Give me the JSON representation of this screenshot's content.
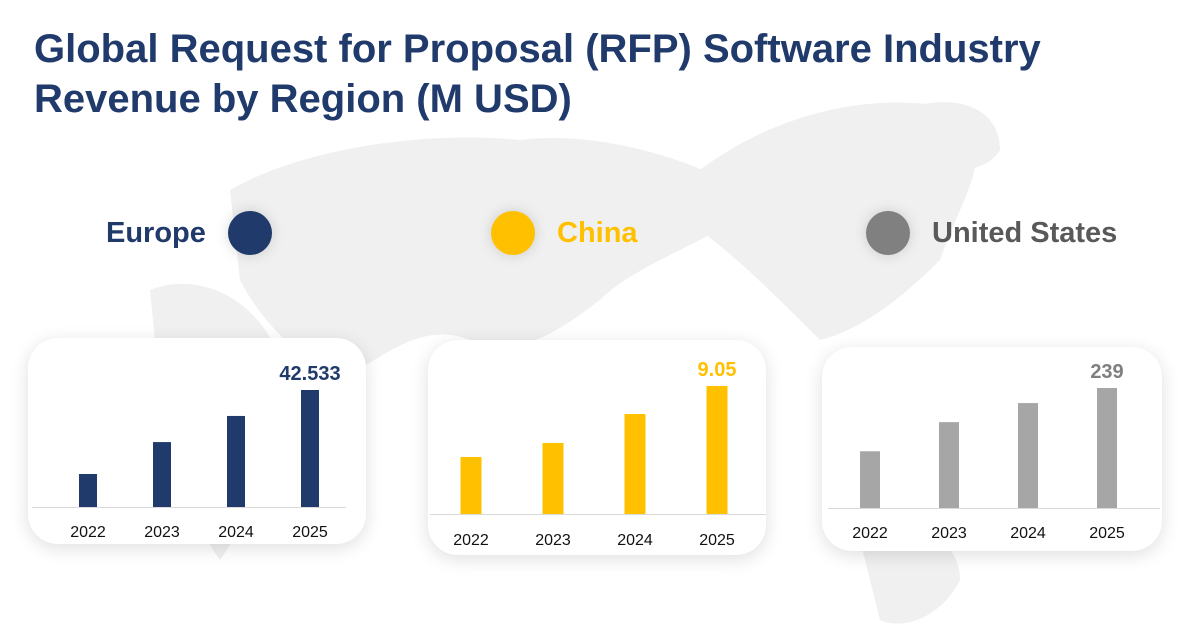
{
  "title": "Global Request for Proposal (RFP) Software Industry Revenue by Region (M USD)",
  "colors": {
    "Europe": "#1f3a6b",
    "China": "#ffc000",
    "United States": "#a6a6a6",
    "title": "#1f3a6b"
  },
  "legend": [
    {
      "label": "Europe",
      "color": "#1f3a6b",
      "text_color": "#1f3a6b"
    },
    {
      "label": "China",
      "color": "#ffc000",
      "text_color": "#ffc000"
    },
    {
      "label": "United States",
      "color": "#808080",
      "text_color": "#595959"
    }
  ],
  "chart_data": [
    {
      "type": "bar",
      "series_name": "Europe",
      "categories": [
        "2022",
        "2023",
        "2024",
        "2025"
      ],
      "values": [
        12.0,
        23.6,
        33.1,
        42.533
      ],
      "data_label": "42.533",
      "color": "#1f3a6b",
      "grid": false
    },
    {
      "type": "bar",
      "series_name": "China",
      "categories": [
        "2022",
        "2023",
        "2024",
        "2025"
      ],
      "values": [
        4.03,
        5.02,
        7.07,
        9.05
      ],
      "data_label": "9.05",
      "color": "#ffc000",
      "grid": false
    },
    {
      "type": "bar",
      "series_name": "United States",
      "categories": [
        "2022",
        "2023",
        "2024",
        "2025"
      ],
      "values": [
        113,
        171,
        209,
        239
      ],
      "data_label": "239",
      "color": "#a6a6a6",
      "grid": false
    }
  ]
}
